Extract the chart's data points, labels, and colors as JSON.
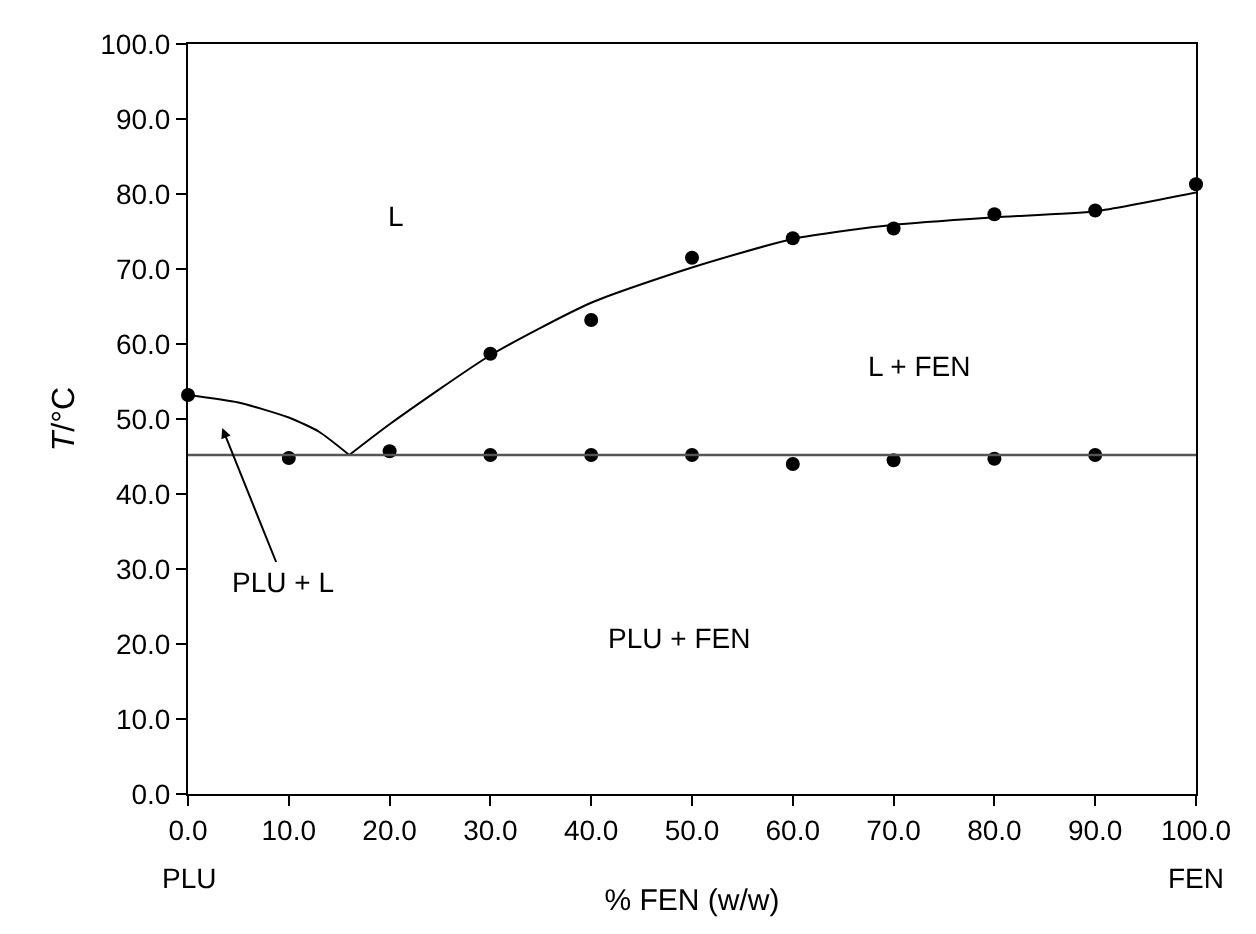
{
  "chart_data": {
    "type": "scatter",
    "xlabel": "% FEN (w/w)",
    "ylabel": "T/°C",
    "xlim": [
      0,
      100
    ],
    "ylim": [
      0,
      100
    ],
    "xticks": [
      {
        "value": 0,
        "label": "0.0"
      },
      {
        "value": 10,
        "label": "10.0"
      },
      {
        "value": 20,
        "label": "20.0"
      },
      {
        "value": 30,
        "label": "30.0"
      },
      {
        "value": 40,
        "label": "40.0"
      },
      {
        "value": 50,
        "label": "50.0"
      },
      {
        "value": 60,
        "label": "60.0"
      },
      {
        "value": 70,
        "label": "70.0"
      },
      {
        "value": 80,
        "label": "80.0"
      },
      {
        "value": 90,
        "label": "90.0"
      },
      {
        "value": 100,
        "label": "100.0"
      }
    ],
    "yticks": [
      {
        "value": 0,
        "label": "0.0"
      },
      {
        "value": 10,
        "label": "10.0"
      },
      {
        "value": 20,
        "label": "20.0"
      },
      {
        "value": 30,
        "label": "30.0"
      },
      {
        "value": 40,
        "label": "40.0"
      },
      {
        "value": 50,
        "label": "50.0"
      },
      {
        "value": 60,
        "label": "60.0"
      },
      {
        "value": 70,
        "label": "70.0"
      },
      {
        "value": 80,
        "label": "80.0"
      },
      {
        "value": 90,
        "label": "90.0"
      },
      {
        "value": 100,
        "label": "100.0"
      }
    ],
    "marker": "circle",
    "series": [
      {
        "color": "#000000",
        "x": [
          0,
          30,
          40,
          50,
          60,
          70,
          80,
          90,
          100
        ],
        "values": [
          53.2,
          58.7,
          63.2,
          71.5,
          74.1,
          75.4,
          77.3,
          77.8,
          81.3
        ]
      },
      {
        "color": "#000000",
        "x": [
          10,
          20,
          30,
          40,
          50,
          60,
          70,
          80,
          90
        ],
        "values": [
          44.8,
          45.7,
          45.2,
          45.2,
          45.2,
          44.0,
          44.5,
          44.7,
          45.2
        ]
      },
      {
        "type": "line",
        "color": "#000000",
        "marker": "none",
        "line_style": "solid",
        "x": [
          0,
          5,
          10,
          13,
          16
        ],
        "values": [
          53.2,
          52.2,
          50.2,
          48.3,
          45.2
        ]
      },
      {
        "type": "line",
        "color": "#000000",
        "marker": "none",
        "line_style": "solid",
        "x": [
          16,
          20,
          30,
          40,
          50,
          60,
          70,
          80,
          90,
          100
        ],
        "values": [
          45.2,
          49.3,
          58.5,
          65.5,
          70.2,
          74.0,
          75.9,
          76.9,
          77.7,
          80.2
        ]
      }
    ],
    "ref_lines": [
      {
        "axis": "y",
        "value": 45.2,
        "color": "#555555",
        "line_style": "solid"
      }
    ],
    "annotations": [
      "L",
      "L + FEN",
      "PLU + FEN",
      "PLU + L",
      "PLU",
      "FEN"
    ]
  }
}
